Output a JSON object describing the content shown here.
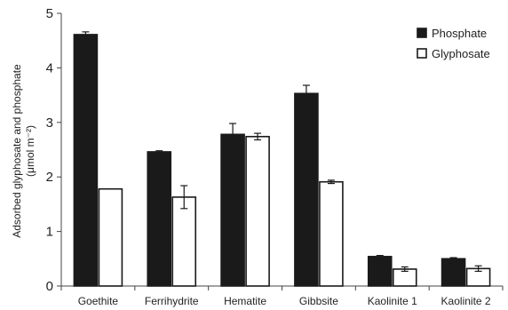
{
  "chart_data": {
    "type": "bar",
    "title": "",
    "ylabel_line1": "Adsorbed glyphosate and phosphate",
    "ylabel_line2": "(μmol m⁻²)",
    "xlabel": "",
    "ylim": [
      0,
      5
    ],
    "yticks": [
      0,
      1,
      2,
      3,
      4,
      5
    ],
    "grid": false,
    "legend_position": "top-right",
    "categories": [
      "Goethite",
      "Ferrihydrite",
      "Hematite",
      "Gibbsite",
      "Kaolinite 1",
      "Kaolinite 2"
    ],
    "series": [
      {
        "name": "Phosphate",
        "fill": "#1a1a1a",
        "stroke": "#1a1a1a",
        "values": [
          4.61,
          2.46,
          2.78,
          3.53,
          0.54,
          0.5
        ],
        "errors": [
          0.05,
          0.02,
          0.2,
          0.15,
          0.02,
          0.02
        ]
      },
      {
        "name": "Glyphosate",
        "fill": "#ffffff",
        "stroke": "#1a1a1a",
        "values": [
          1.78,
          1.63,
          2.74,
          1.91,
          0.31,
          0.32
        ],
        "errors": [
          0.0,
          0.21,
          0.06,
          0.03,
          0.04,
          0.05
        ]
      }
    ]
  }
}
